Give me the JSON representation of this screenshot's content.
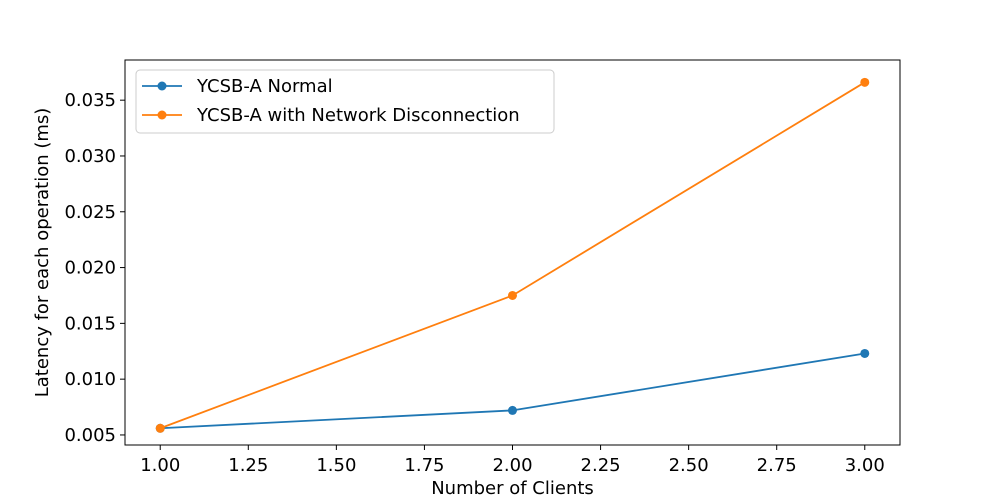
{
  "chart_data": {
    "type": "line",
    "title": "",
    "xlabel": "Number of Clients",
    "ylabel": "Latency for each operation (ms)",
    "xlim": [
      0.9,
      3.1
    ],
    "ylim": [
      0.0041,
      0.0386
    ],
    "xticks": [
      1.0,
      1.25,
      1.5,
      1.75,
      2.0,
      2.25,
      2.5,
      2.75,
      3.0
    ],
    "xtick_labels": [
      "1.00",
      "1.25",
      "1.50",
      "1.75",
      "2.00",
      "2.25",
      "2.50",
      "2.75",
      "3.00"
    ],
    "yticks": [
      0.005,
      0.01,
      0.015,
      0.02,
      0.025,
      0.03,
      0.035
    ],
    "ytick_labels": [
      "0.005",
      "0.010",
      "0.015",
      "0.020",
      "0.025",
      "0.030",
      "0.035"
    ],
    "grid": false,
    "legend_position": "top-left",
    "x": [
      1.0,
      2.0,
      3.0
    ],
    "series": [
      {
        "name": "YCSB-A Normal",
        "values": [
          0.0056,
          0.0072,
          0.0123
        ],
        "color": "#1f77b4",
        "marker": "circle"
      },
      {
        "name": "YCSB-A with Network Disconnection",
        "values": [
          0.0056,
          0.0175,
          0.0366
        ],
        "color": "#ff7f0e",
        "marker": "circle"
      }
    ]
  }
}
